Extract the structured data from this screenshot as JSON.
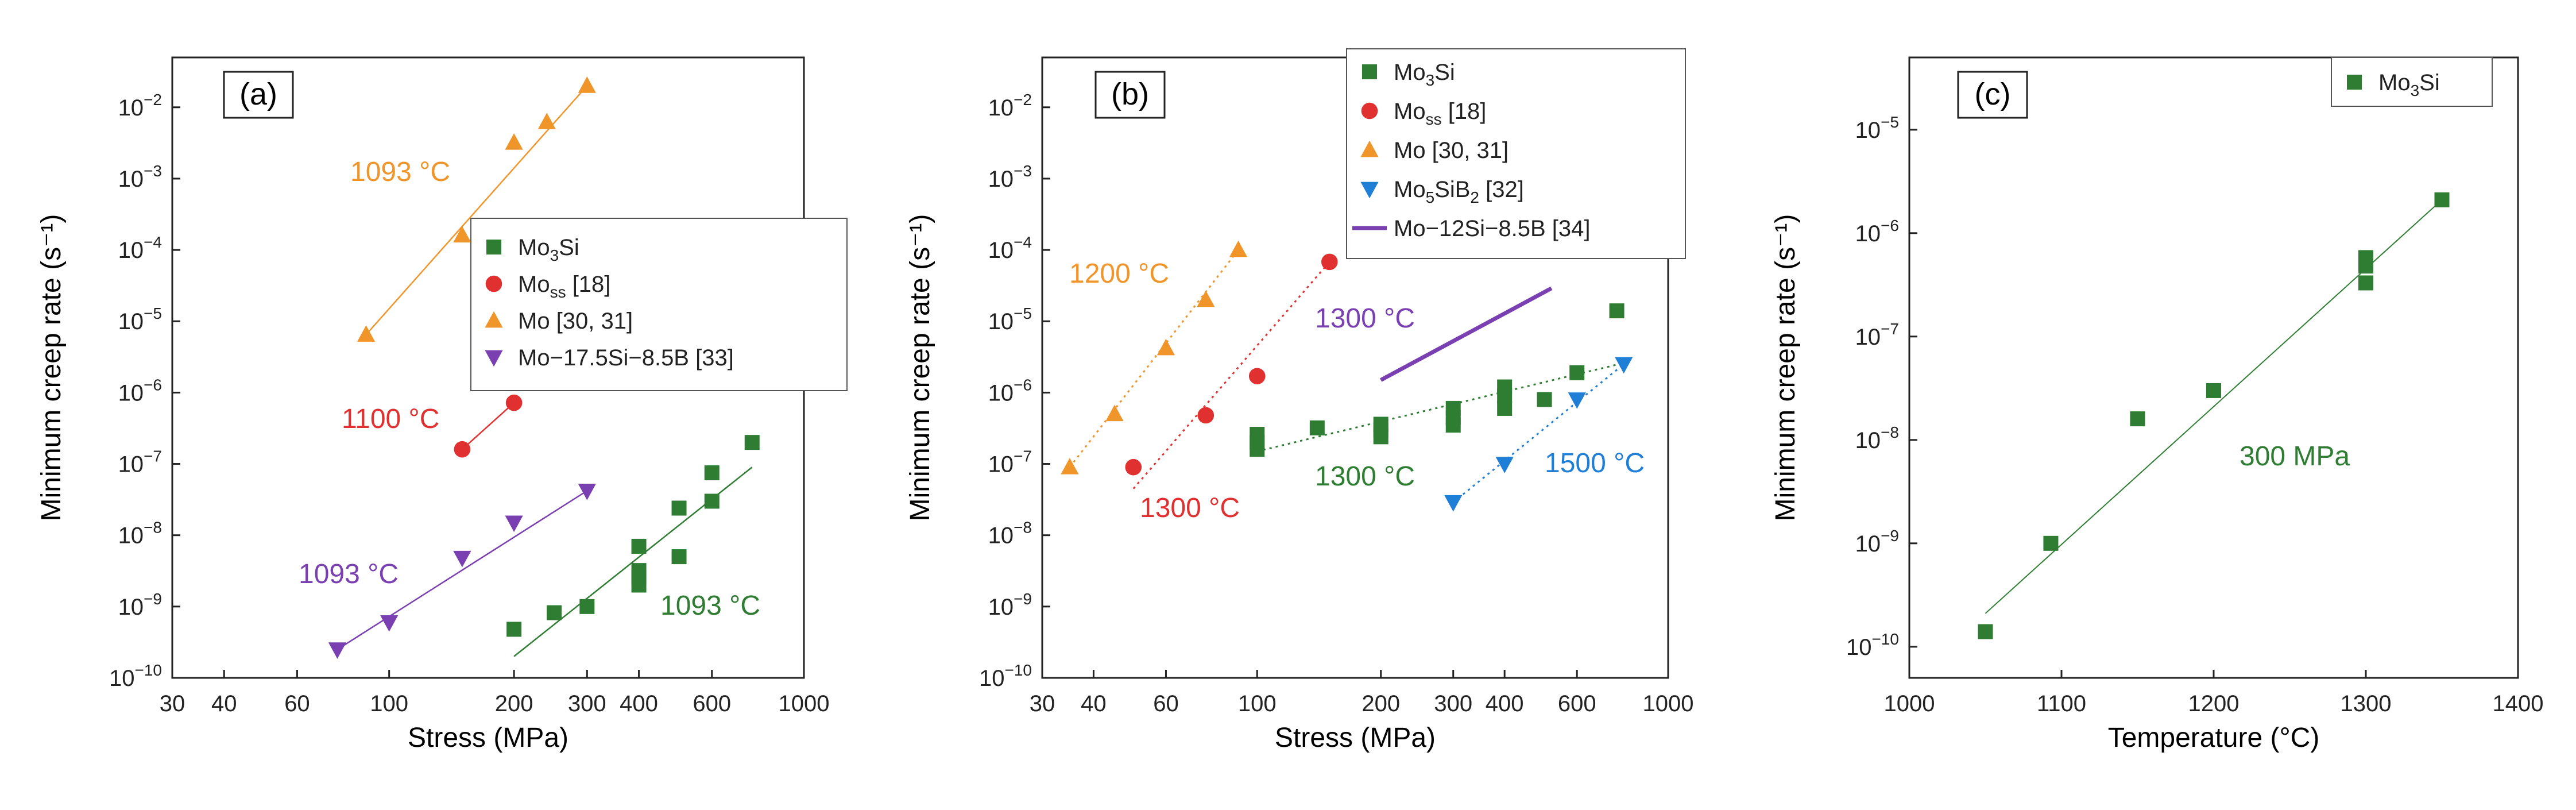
{
  "colors": {
    "green": "#2e7d32",
    "red": "#e03030",
    "orange": "#f0952a",
    "purple": "#7a3fb0",
    "blue": "#1f7ed6"
  },
  "chart_data": [
    {
      "type": "scatter",
      "panel_label": "(a)",
      "xlabel": "Stress (MPa)",
      "ylabel": "Minimum creep rate (s⁻¹)",
      "xscale": "log",
      "yscale": "log",
      "xlim": [
        30,
        1000
      ],
      "ylim": [
        1e-10,
        0.05
      ],
      "xticks": [
        30,
        40,
        60,
        100,
        200,
        300,
        400,
        600,
        1000
      ],
      "yticks": [
        -10,
        -9,
        -8,
        -7,
        -6,
        -5,
        -4,
        -3,
        -2
      ],
      "legend": [
        {
          "label": "Mo",
          "sub": "3",
          "tail": "Si",
          "marker": "square",
          "color": "#2e7d32"
        },
        {
          "label": "Mo",
          "sub": "ss",
          "tail": " [18]",
          "marker": "circle",
          "color": "#e03030"
        },
        {
          "label": "Mo [30, 31]",
          "sub": "",
          "tail": "",
          "marker": "triangle-up",
          "color": "#f0952a"
        },
        {
          "label": "Mo−17.5Si−8.5B [33]",
          "sub": "",
          "tail": "",
          "marker": "triangle-down",
          "color": "#7a3fb0"
        }
      ],
      "legend_position": "center-right",
      "series": [
        {
          "name": "Mo3Si",
          "marker": "square",
          "color": "#2e7d32",
          "points": [
            [
              200,
              4.8e-10
            ],
            [
              250,
              8.2e-10
            ],
            [
              300,
              1e-09
            ],
            [
              400,
              2e-09
            ],
            [
              400,
              2.6e-09
            ],
            [
              400,
              3.2e-09
            ],
            [
              400,
              7e-09
            ],
            [
              500,
              5e-09
            ],
            [
              500,
              2.4e-08
            ],
            [
              600,
              3e-08
            ],
            [
              600,
              7.5e-08
            ],
            [
              750,
              2e-07
            ]
          ],
          "fit": [
            [
              200,
              2e-10
            ],
            [
              750,
              9e-08
            ]
          ],
          "fit_style": "solid"
        },
        {
          "name": "Moss",
          "marker": "circle",
          "color": "#e03030",
          "points": [
            [
              150,
              1.6e-07
            ],
            [
              200,
              7.2e-07
            ]
          ],
          "fit": [
            [
              150,
              1.6e-07
            ],
            [
              200,
              7.2e-07
            ]
          ],
          "fit_style": "solid"
        },
        {
          "name": "Mo",
          "marker": "triangle-up",
          "color": "#f0952a",
          "points": [
            [
              88,
              6.5e-06
            ],
            [
              150,
              0.00016
            ],
            [
              200,
              0.0032
            ],
            [
              240,
              0.0062
            ],
            [
              300,
              0.02
            ]
          ],
          "fit": [
            [
              88,
              6.5e-06
            ],
            [
              300,
              0.02
            ]
          ],
          "fit_style": "solid"
        },
        {
          "name": "Mo-17.5Si-8.5B",
          "marker": "triangle-down",
          "color": "#7a3fb0",
          "points": [
            [
              75,
              2.5e-10
            ],
            [
              100,
              6e-10
            ],
            [
              150,
              4.8e-09
            ],
            [
              200,
              1.5e-08
            ],
            [
              300,
              4.2e-08
            ]
          ],
          "fit": [
            [
              75,
              2.5e-10
            ],
            [
              300,
              4.2e-08
            ]
          ],
          "fit_style": "solid"
        }
      ],
      "annotations": [
        {
          "text": "1093 °C",
          "color": "#f0952a"
        },
        {
          "text": "1100 °C",
          "color": "#e03030"
        },
        {
          "text": "1093 °C",
          "color": "#7a3fb0"
        },
        {
          "text": "1093 °C",
          "color": "#2e7d32"
        }
      ]
    },
    {
      "type": "scatter",
      "panel_label": "(b)",
      "xlabel": "Stress (MPa)",
      "ylabel": "Minimum creep rate (s⁻¹)",
      "xscale": "log",
      "yscale": "log",
      "xlim": [
        30,
        1000
      ],
      "ylim": [
        1e-10,
        0.05
      ],
      "xticks": [
        30,
        40,
        60,
        100,
        200,
        300,
        400,
        600,
        1000
      ],
      "yticks": [
        -10,
        -9,
        -8,
        -7,
        -6,
        -5,
        -4,
        -3,
        -2
      ],
      "legend": [
        {
          "label": "Mo",
          "sub": "3",
          "tail": "Si",
          "marker": "square",
          "color": "#2e7d32"
        },
        {
          "label": "Mo",
          "sub": "ss",
          "tail": " [18]",
          "marker": "circle",
          "color": "#e03030"
        },
        {
          "label": "Mo [30, 31]",
          "sub": "",
          "tail": "",
          "marker": "triangle-up",
          "color": "#f0952a"
        },
        {
          "label": "Mo",
          "sub": "5",
          "tail": "SiB",
          "sub2": "2",
          "tail2": " [32]",
          "marker": "triangle-down",
          "color": "#1f7ed6"
        },
        {
          "label": "Mo−12Si−8.5B [34]",
          "sub": "",
          "tail": "",
          "marker": "line",
          "color": "#7a3fb0"
        }
      ],
      "legend_position": "top-right",
      "series": [
        {
          "name": "Mo3Si",
          "marker": "square",
          "color": "#2e7d32",
          "points": [
            [
              100,
              1.6e-07
            ],
            [
              100,
              2e-07
            ],
            [
              100,
              2.6e-07
            ],
            [
              140,
              3.2e-07
            ],
            [
              200,
              2.4e-07
            ],
            [
              200,
              3e-07
            ],
            [
              200,
              3.6e-07
            ],
            [
              300,
              3.5e-07
            ],
            [
              300,
              4.5e-07
            ],
            [
              300,
              6e-07
            ],
            [
              400,
              6e-07
            ],
            [
              400,
              9e-07
            ],
            [
              400,
              1.2e-06
            ],
            [
              500,
              8e-07
            ],
            [
              600,
              1.9e-06
            ],
            [
              750,
              1.4e-05
            ]
          ],
          "fit": [
            [
              100,
              1.5e-07
            ],
            [
              780,
              2.6e-06
            ]
          ],
          "fit_style": "dotted"
        },
        {
          "name": "Moss",
          "marker": "circle",
          "color": "#e03030",
          "points": [
            [
              50,
              9e-08
            ],
            [
              75,
              4.8e-07
            ],
            [
              100,
              1.7e-06
            ],
            [
              150,
              6.8e-05
            ]
          ],
          "fit": [
            [
              50,
              4.5e-08
            ],
            [
              150,
              6.8e-05
            ]
          ],
          "fit_style": "dotted"
        },
        {
          "name": "Mo",
          "marker": "triangle-up",
          "color": "#f0952a",
          "points": [
            [
              35,
              9e-08
            ],
            [
              45,
              5e-07
            ],
            [
              60,
              4.2e-06
            ],
            [
              75,
              2e-05
            ],
            [
              90,
              0.0001
            ]
          ],
          "fit": [
            [
              35,
              9e-08
            ],
            [
              90,
              0.0001
            ]
          ],
          "fit_style": "dotted"
        },
        {
          "name": "Mo5SiB2",
          "marker": "triangle-down",
          "color": "#1f7ed6",
          "points": [
            [
              300,
              2.9e-08
            ],
            [
              400,
              1e-07
            ],
            [
              600,
              8e-07
            ],
            [
              780,
              2.5e-06
            ]
          ],
          "fit": [
            [
              300,
              2.9e-08
            ],
            [
              780,
              2.5e-06
            ]
          ],
          "fit_style": "dotted"
        },
        {
          "name": "Mo-12Si-8.5B",
          "marker": "none",
          "color": "#7a3fb0",
          "points": [],
          "fit": [
            [
              200,
              1.5e-06
            ],
            [
              520,
              2.9e-05
            ]
          ],
          "fit_style": "thick"
        }
      ],
      "annotations": [
        {
          "text": "1200 °C",
          "color": "#f0952a"
        },
        {
          "text": "1300 °C",
          "color": "#7a3fb0"
        },
        {
          "text": "1300 °C",
          "color": "#2e7d32"
        },
        {
          "text": "1300 °C",
          "color": "#e03030"
        },
        {
          "text": "1500 °C",
          "color": "#1f7ed6"
        }
      ]
    },
    {
      "type": "scatter",
      "panel_label": "(c)",
      "xlabel": "Temperature (°C)",
      "ylabel": "Minimum creep rate (s⁻¹)",
      "xscale": "linear",
      "yscale": "log",
      "xlim": [
        1000,
        1400
      ],
      "ylim": [
        5e-11,
        5e-05
      ],
      "xticks": [
        1000,
        1100,
        1200,
        1300,
        1400
      ],
      "yticks": [
        -10,
        -9,
        -8,
        -7,
        -6,
        -5
      ],
      "legend": [
        {
          "label": "Mo",
          "sub": "3",
          "tail": "Si",
          "marker": "square",
          "color": "#2e7d32"
        }
      ],
      "legend_position": "top-right",
      "series": [
        {
          "name": "Mo3Si",
          "marker": "square",
          "color": "#2e7d32",
          "points": [
            [
              1050,
              1.4e-10
            ],
            [
              1093,
              1e-09
            ],
            [
              1150,
              1.6e-08
            ],
            [
              1200,
              3e-08
            ],
            [
              1300,
              3.3e-07
            ],
            [
              1300,
              4.8e-07
            ],
            [
              1300,
              5.8e-07
            ],
            [
              1350,
              2.1e-06
            ]
          ],
          "fit": [
            [
              1050,
              2.1e-10
            ],
            [
              1350,
              2.1e-06
            ]
          ],
          "fit_style": "thin"
        }
      ],
      "annotations": [
        {
          "text": "300 MPa",
          "color": "#2e7d32"
        }
      ]
    }
  ]
}
